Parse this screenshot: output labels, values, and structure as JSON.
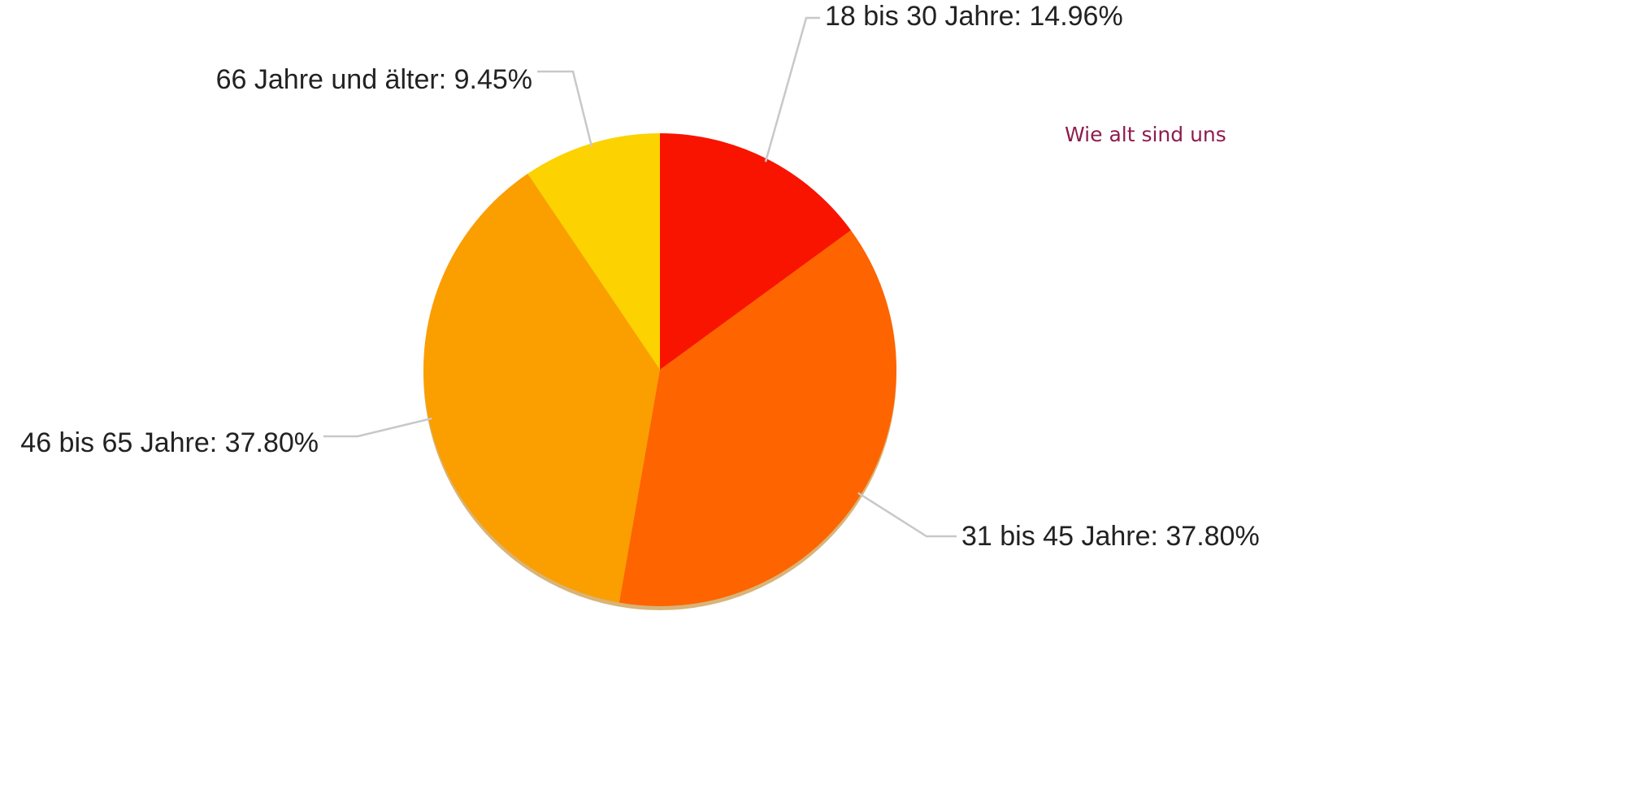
{
  "chart_data": {
    "type": "pie",
    "subtitle": "Wie alt sind uns",
    "values": [
      14.96,
      37.8,
      37.8,
      9.45
    ],
    "value_labels": [
      "18 bis 30 Jahre: 14.96%",
      "31 bis 45 Jahre: 37.80%",
      "46 bis 65 Jahre: 37.80%",
      "66 Jahre und älter: 9.45%"
    ],
    "colors": [
      "#f91400",
      "#fe6400",
      "#fb9e00",
      "#fcd200"
    ]
  }
}
